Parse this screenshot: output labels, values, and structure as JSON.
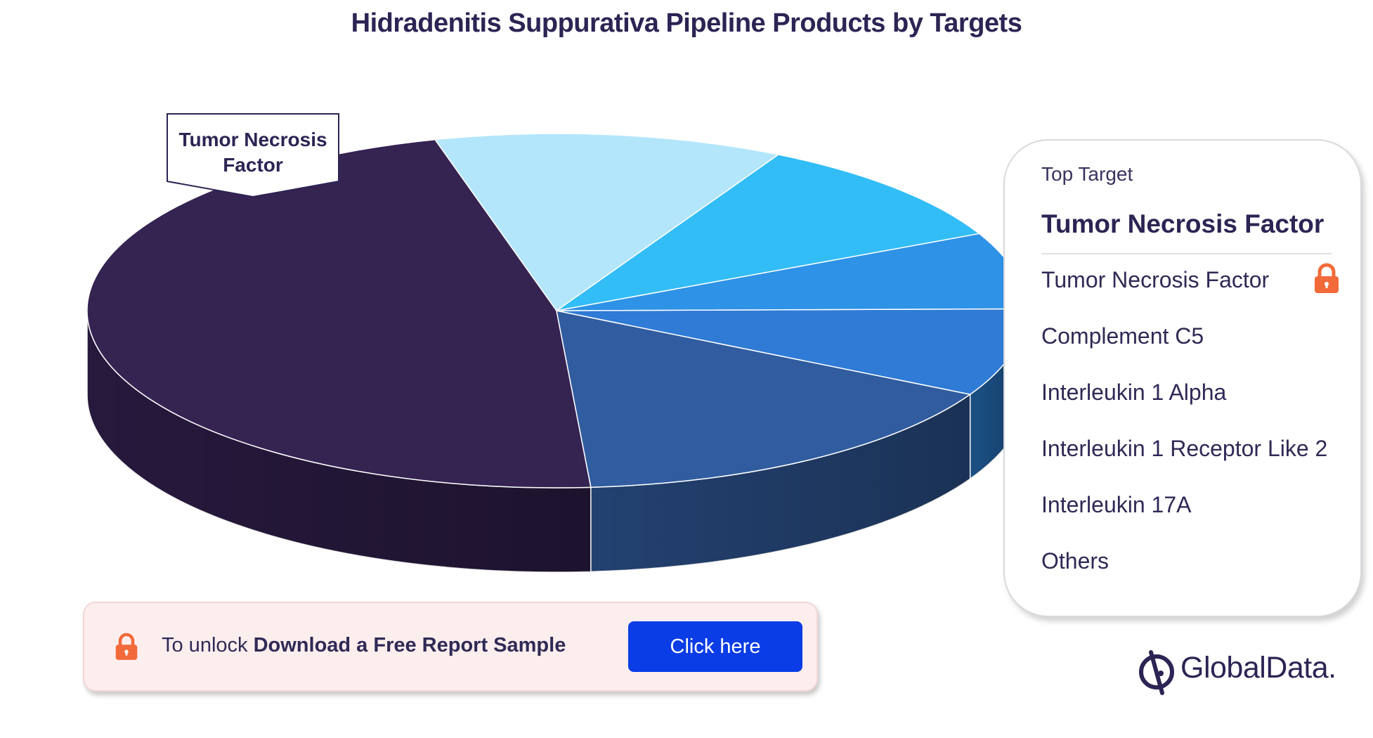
{
  "chart_data": {
    "type": "pie",
    "title": "Hidradenitis Suppurativa Pipeline Products by Targets",
    "categories": [
      "Tumor Necrosis Factor",
      "Complement C5",
      "Interleukin 1 Alpha",
      "Interleukin 1 Receptor Like 2",
      "Interleukin 17A",
      "Others"
    ],
    "values": [
      47.0,
      16.0,
      8.0,
      7.0,
      10.0,
      12.0
    ],
    "value_note": "",
    "callout_label": "Tumor Necrosis Factor",
    "style": "3d-pie",
    "legend_position": "right"
  },
  "colors": {
    "slices": [
      "#352352",
      "#315da0",
      "#2f7bd6",
      "#2e92e6",
      "#32bdf7",
      "#b3e6fb",
      "#5ec9ff"
    ],
    "sides": [
      "#2a1b42",
      "#26477a",
      "#1e5791",
      "#1f5e8f",
      "#155a7a",
      "#4a5c66",
      "#2f7faa"
    ],
    "accent_lock": "#f26a3a",
    "button": "#0a3de6"
  },
  "legend": {
    "heading": "Top Target",
    "top_value": "Tumor Necrosis Factor",
    "items": [
      "Tumor Necrosis Factor",
      "Complement C5",
      "Interleukin 1 Alpha",
      "Interleukin 1 Receptor Like 2",
      "Interleukin 17A",
      "Others"
    ],
    "locked_item_icon": "lock-icon"
  },
  "banner": {
    "prefix": "To unlock ",
    "emphasis": "Download a Free Report Sample",
    "button_label": "Click here",
    "icon": "lock-icon"
  },
  "brand": {
    "name": "GlobalData."
  }
}
